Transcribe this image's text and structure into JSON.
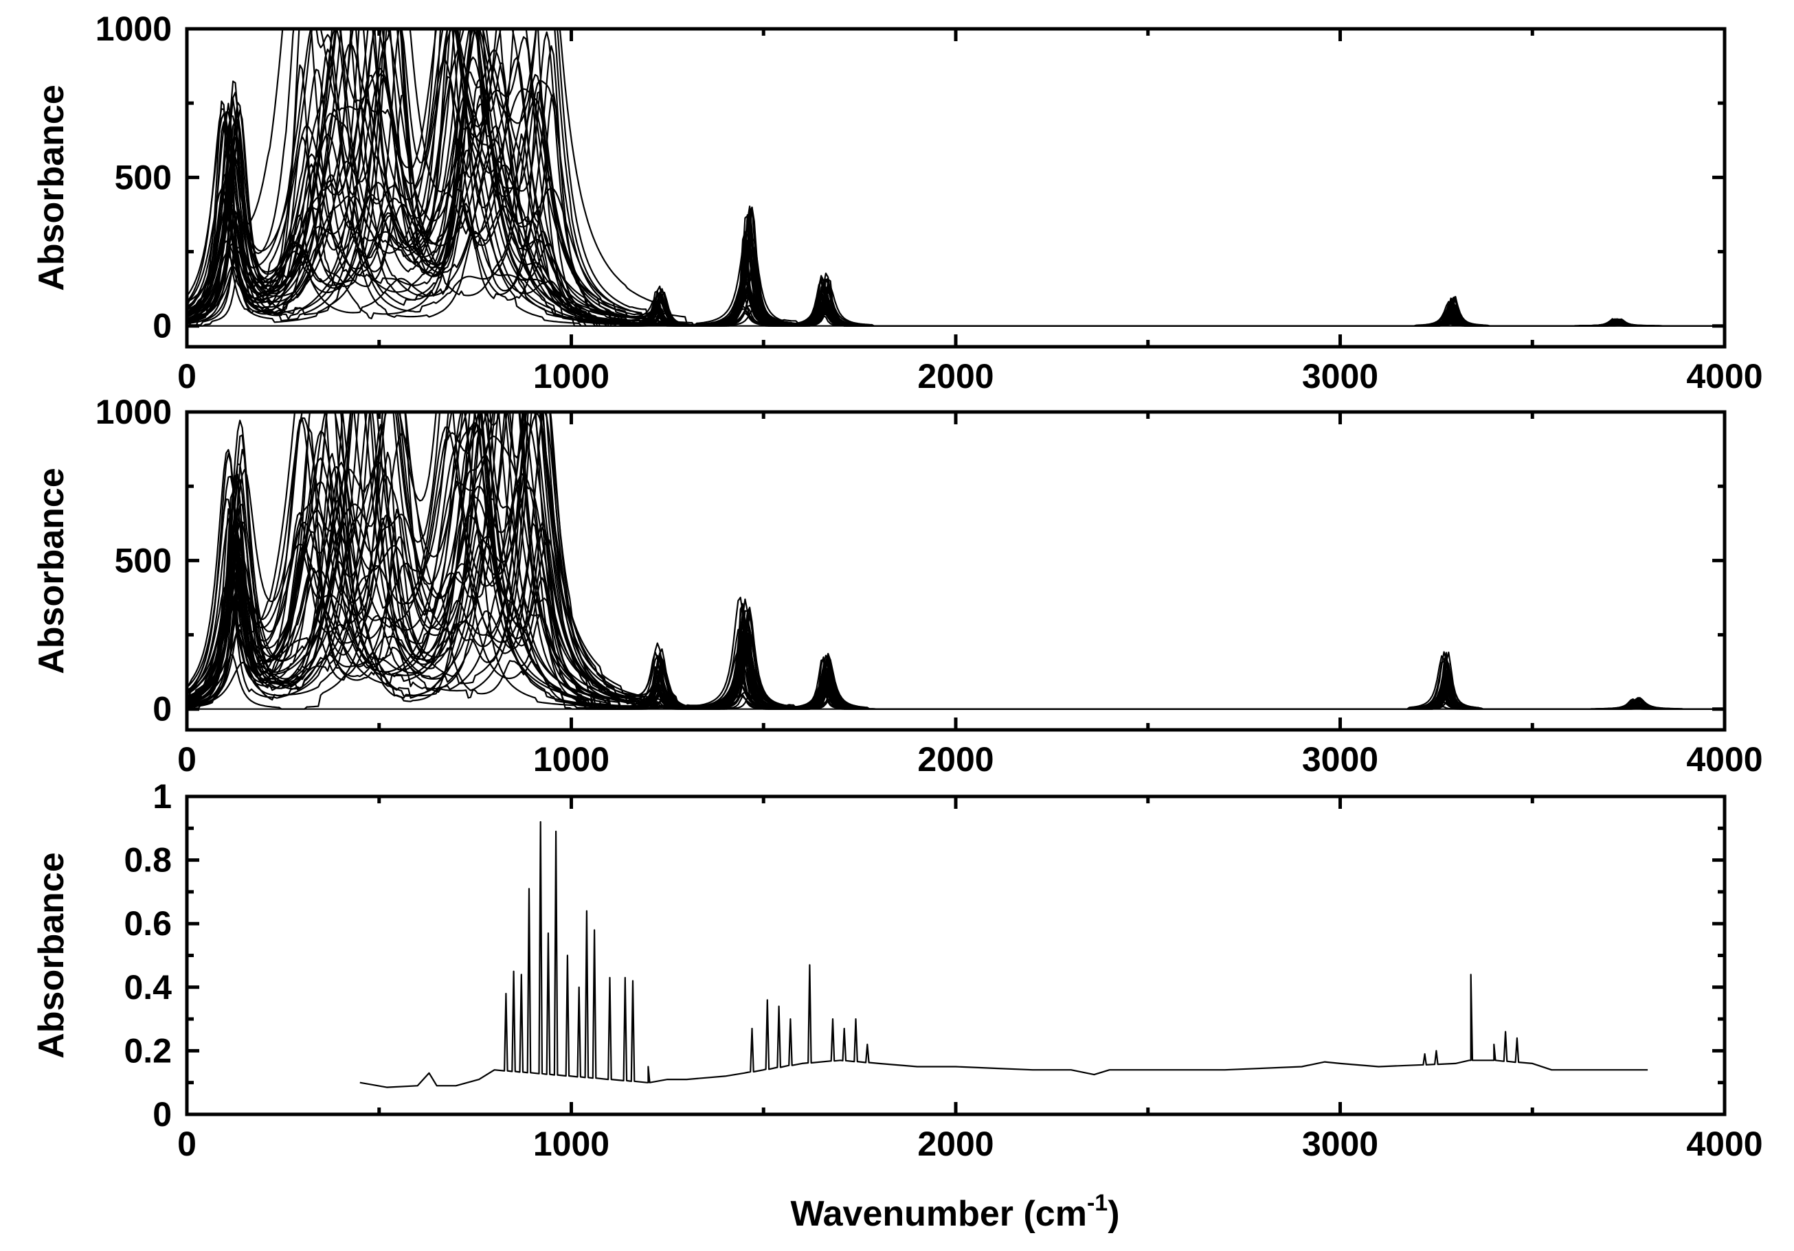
{
  "chart_data": [
    {
      "type": "line",
      "panel": "top",
      "ylabel": "Absorbance",
      "xlabel": "",
      "xlim": [
        0,
        4000
      ],
      "ylim": [
        -70,
        1000
      ],
      "x_ticks": [
        0,
        1000,
        2000,
        3000,
        4000
      ],
      "x_tick_labels": [
        "0",
        "1000",
        "2000",
        "3000",
        "4000"
      ],
      "y_ticks": [
        0,
        500,
        1000
      ],
      "y_tick_labels": [
        "0",
        "500",
        "1000"
      ],
      "grid": false,
      "legend": "none",
      "series_count": 40,
      "peak_bands": [
        {
          "center": 115,
          "height_range": [
            150,
            800
          ],
          "width": 40
        },
        {
          "center": 420,
          "height_range": [
            0,
            1000
          ],
          "width": 110
        },
        {
          "center": 810,
          "height_range": [
            100,
            1000
          ],
          "width": 110
        },
        {
          "center": 1230,
          "height_range": [
            0,
            120
          ],
          "width": 20
        },
        {
          "center": 1460,
          "height_range": [
            40,
            420
          ],
          "width": 24
        },
        {
          "center": 1660,
          "height_range": [
            20,
            190
          ],
          "width": 20
        },
        {
          "center": 3290,
          "height_range": [
            5,
            115
          ],
          "width": 16
        },
        {
          "center": 3720,
          "height_range": [
            0,
            25
          ],
          "width": 20
        }
      ]
    },
    {
      "type": "line",
      "panel": "middle",
      "ylabel": "Absorbance",
      "xlabel": "",
      "xlim": [
        0,
        4000
      ],
      "ylim": [
        -70,
        1000
      ],
      "x_ticks": [
        0,
        1000,
        2000,
        3000,
        4000
      ],
      "x_tick_labels": [
        "0",
        "1000",
        "2000",
        "3000",
        "4000"
      ],
      "y_ticks": [
        0,
        500,
        1000
      ],
      "y_tick_labels": [
        "0",
        "500",
        "1000"
      ],
      "grid": false,
      "legend": "none",
      "series_count": 40,
      "peak_bands": [
        {
          "center": 125,
          "height_range": [
            150,
            970
          ],
          "width": 40
        },
        {
          "center": 420,
          "height_range": [
            0,
            1000
          ],
          "width": 110
        },
        {
          "center": 800,
          "height_range": [
            100,
            1000
          ],
          "width": 110
        },
        {
          "center": 1230,
          "height_range": [
            0,
            210
          ],
          "width": 20
        },
        {
          "center": 1450,
          "height_range": [
            40,
            390
          ],
          "width": 24
        },
        {
          "center": 1665,
          "height_range": [
            20,
            200
          ],
          "width": 20
        },
        {
          "center": 3275,
          "height_range": [
            5,
            200
          ],
          "width": 16
        },
        {
          "center": 3770,
          "height_range": [
            0,
            40
          ],
          "width": 20
        }
      ]
    },
    {
      "type": "line",
      "panel": "bottom",
      "ylabel": "Absorbance",
      "xlabel": "Wavenumber (cm-1)",
      "xlim": [
        0,
        4000
      ],
      "ylim": [
        0,
        1
      ],
      "x_ticks": [
        0,
        1000,
        2000,
        3000,
        4000
      ],
      "x_tick_labels": [
        "0",
        "1000",
        "2000",
        "3000",
        "4000"
      ],
      "y_ticks": [
        0,
        0.2,
        0.4,
        0.6,
        0.8,
        1
      ],
      "y_tick_labels": [
        "0",
        "0.2",
        "0.4",
        "0.6",
        "0.8",
        "1"
      ],
      "grid": false,
      "legend": "none",
      "x": [
        450,
        520,
        600,
        630,
        650,
        700,
        760,
        800,
        1000,
        1200,
        1250,
        1300,
        1400,
        1450,
        1500,
        1600,
        1700,
        1800,
        1900,
        2000,
        2100,
        2200,
        2300,
        2360,
        2400,
        2500,
        2700,
        2900,
        2960,
        3000,
        3100,
        3200,
        3300,
        3340,
        3400,
        3500,
        3550,
        3600,
        3700,
        3800
      ],
      "y": [
        0.1,
        0.085,
        0.09,
        0.13,
        0.09,
        0.09,
        0.11,
        0.14,
        0.12,
        0.1,
        0.11,
        0.11,
        0.12,
        0.13,
        0.14,
        0.16,
        0.17,
        0.16,
        0.15,
        0.15,
        0.145,
        0.14,
        0.14,
        0.125,
        0.14,
        0.14,
        0.14,
        0.15,
        0.165,
        0.16,
        0.15,
        0.155,
        0.16,
        0.17,
        0.17,
        0.16,
        0.14,
        0.14,
        0.14,
        0.14
      ],
      "spikes": [
        {
          "x": 830,
          "y": 0.38
        },
        {
          "x": 850,
          "y": 0.45
        },
        {
          "x": 870,
          "y": 0.44
        },
        {
          "x": 890,
          "y": 0.71
        },
        {
          "x": 920,
          "y": 0.92
        },
        {
          "x": 940,
          "y": 0.57
        },
        {
          "x": 960,
          "y": 0.89
        },
        {
          "x": 990,
          "y": 0.5
        },
        {
          "x": 1020,
          "y": 0.4
        },
        {
          "x": 1040,
          "y": 0.64
        },
        {
          "x": 1060,
          "y": 0.58
        },
        {
          "x": 1100,
          "y": 0.43
        },
        {
          "x": 1140,
          "y": 0.43
        },
        {
          "x": 1160,
          "y": 0.42
        },
        {
          "x": 1200,
          "y": 0.15
        },
        {
          "x": 1470,
          "y": 0.27
        },
        {
          "x": 1510,
          "y": 0.36
        },
        {
          "x": 1540,
          "y": 0.34
        },
        {
          "x": 1570,
          "y": 0.3
        },
        {
          "x": 1620,
          "y": 0.47
        },
        {
          "x": 1680,
          "y": 0.3
        },
        {
          "x": 1710,
          "y": 0.27
        },
        {
          "x": 1740,
          "y": 0.3
        },
        {
          "x": 1770,
          "y": 0.22
        },
        {
          "x": 3220,
          "y": 0.19
        },
        {
          "x": 3250,
          "y": 0.2
        },
        {
          "x": 3340,
          "y": 0.44
        },
        {
          "x": 3400,
          "y": 0.22
        },
        {
          "x": 3430,
          "y": 0.26
        },
        {
          "x": 3460,
          "y": 0.24
        }
      ]
    }
  ]
}
